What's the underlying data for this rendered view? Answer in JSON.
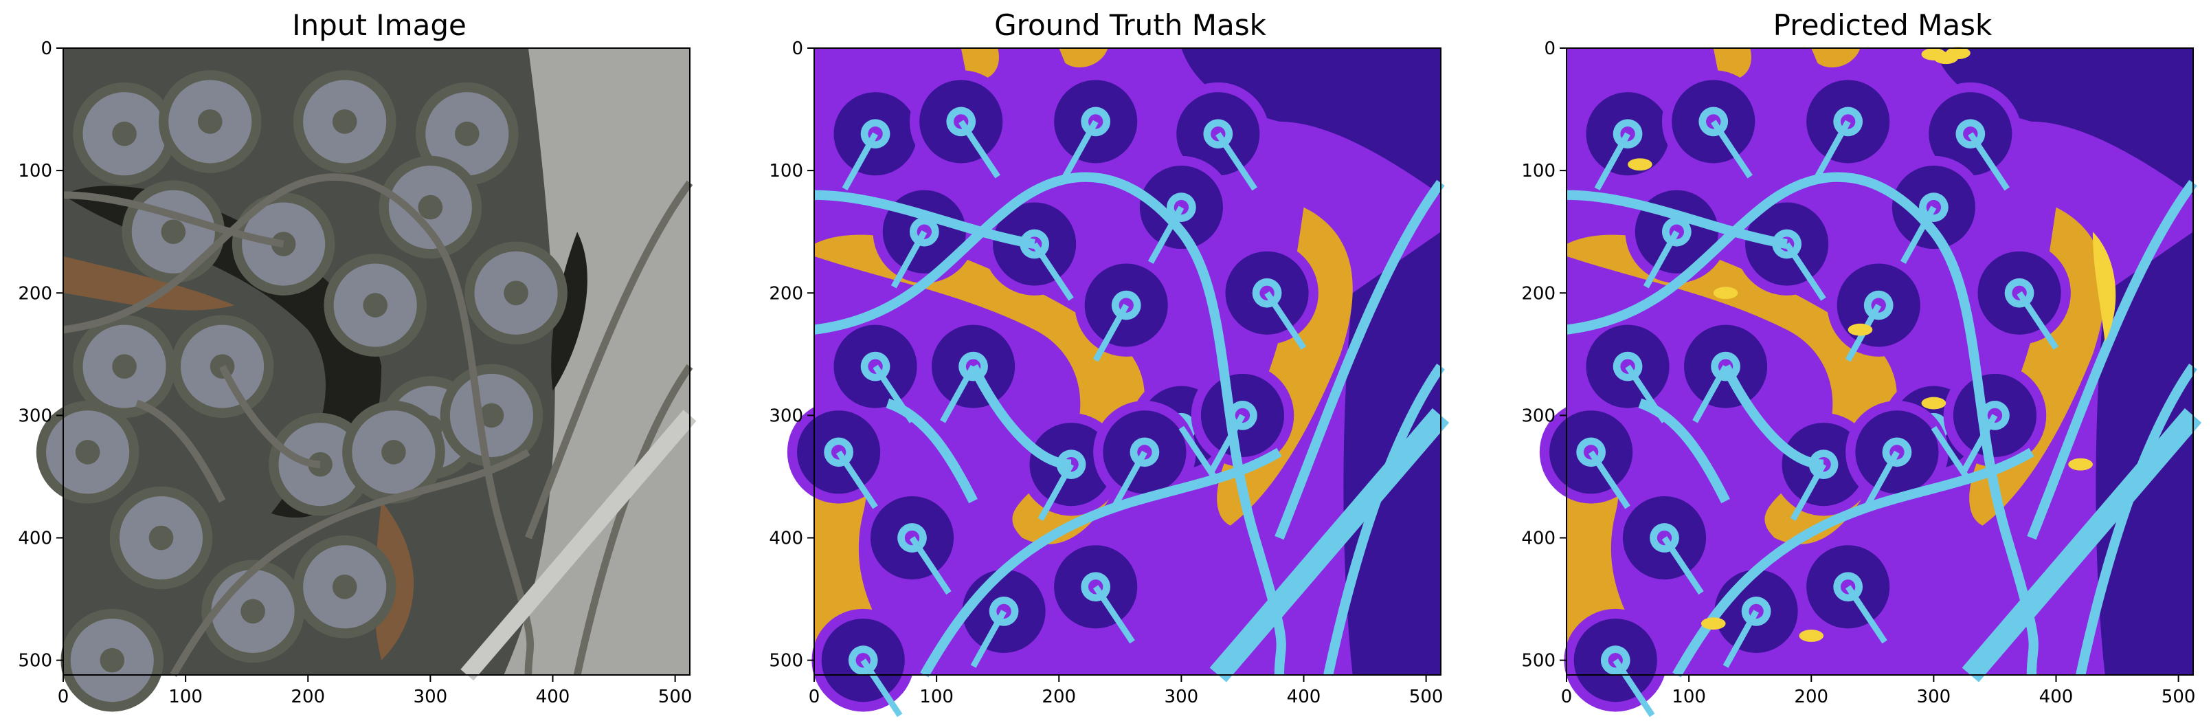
{
  "figure": {
    "panels": [
      {
        "id": "input",
        "title": "Input Image"
      },
      {
        "id": "ground_truth",
        "title": "Ground Truth Mask"
      },
      {
        "id": "predicted",
        "title": "Predicted Mask"
      }
    ],
    "axes": {
      "x_ticks": [
        "0",
        "100",
        "200",
        "300",
        "400",
        "500"
      ],
      "y_ticks": [
        "0",
        "100",
        "200",
        "300",
        "400",
        "500"
      ],
      "tick_values": [
        0,
        100,
        200,
        300,
        400,
        500
      ],
      "range": [
        0,
        512
      ]
    },
    "mask_colors": {
      "background": "#8a2be2",
      "buildings": "#3a1496",
      "roads": "#6ccbe8",
      "water": "#e0a526",
      "highlight": "#f5d33a"
    },
    "image_colors": {
      "ground": "#4a4d48",
      "lawn": "#5a5e52",
      "water": "#1f1f1c",
      "sand": "#7d5a3b",
      "pavement": "#a6a7a2",
      "roofs": "#8f94a8"
    }
  }
}
